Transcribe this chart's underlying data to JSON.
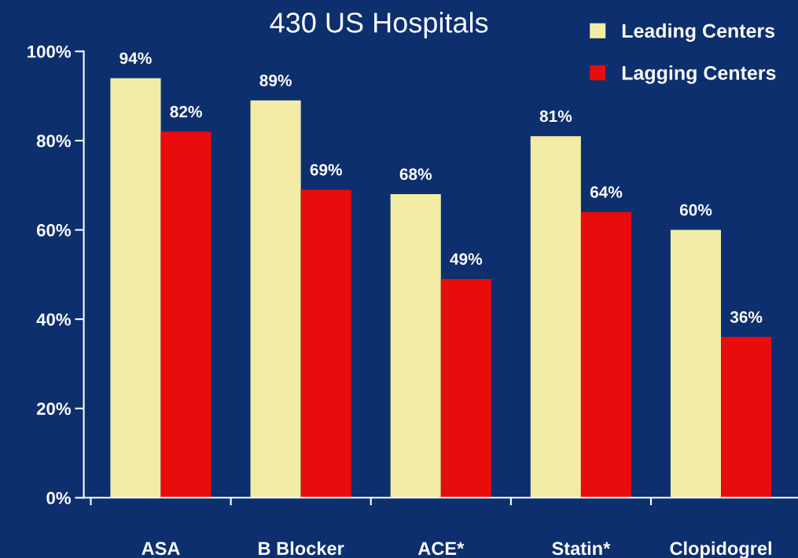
{
  "chart_data": {
    "type": "bar",
    "title": "430 US Hospitals",
    "categories": [
      "ASA",
      "B Blocker",
      "ACE*",
      "Statin*",
      "Clopidogrel"
    ],
    "series": [
      {
        "name": "Leading Centers",
        "color": "#f2eca6",
        "values": [
          94,
          89,
          68,
          81,
          60
        ],
        "value_labels": [
          "94%",
          "89%",
          "68%",
          "81%",
          "60%"
        ]
      },
      {
        "name": "Lagging Centers",
        "color": "#e80c0c",
        "values": [
          82,
          69,
          49,
          64,
          36
        ],
        "value_labels": [
          "82%",
          "69%",
          "49%",
          "64%",
          "36%"
        ]
      }
    ],
    "ylim": [
      0,
      100
    ],
    "yticks": [
      {
        "value": 0,
        "label": "0%"
      },
      {
        "value": 20,
        "label": "20%"
      },
      {
        "value": 40,
        "label": "40%"
      },
      {
        "value": 60,
        "label": "60%"
      },
      {
        "value": 80,
        "label": "80%"
      },
      {
        "value": 100,
        "label": "100%"
      }
    ],
    "grid": false,
    "legend": "top right"
  }
}
